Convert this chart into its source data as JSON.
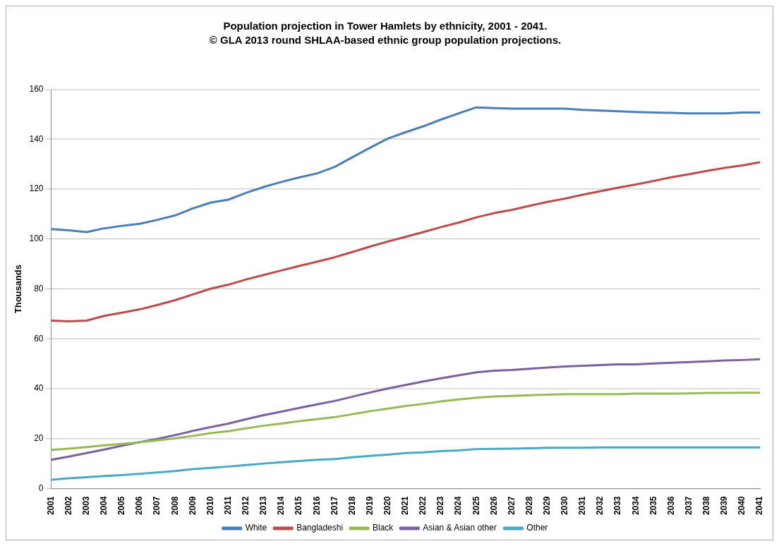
{
  "chart_data": {
    "type": "line",
    "title": "Population projection in Tower Hamlets by ethnicity, 2001 - 2041.",
    "subtitle": "© GLA 2013 round SHLAA-based ethnic group population projections.",
    "ylabel": "Thousands",
    "categories": [
      "2001",
      "2002",
      "2003",
      "2004",
      "2005",
      "2006",
      "2007",
      "2008",
      "2009",
      "2010",
      "2011",
      "2012",
      "2013",
      "2014",
      "2015",
      "2016",
      "2017",
      "2018",
      "2019",
      "2020",
      "2021",
      "2022",
      "2023",
      "2024",
      "2025",
      "2026",
      "2027",
      "2028",
      "2029",
      "2030",
      "2031",
      "2032",
      "2033",
      "2034",
      "2035",
      "2036",
      "2037",
      "2038",
      "2039",
      "2040",
      "2041"
    ],
    "series": [
      {
        "name": "White",
        "color": "#4a7ebb",
        "values": [
          104,
          103.5,
          102.8,
          104.3,
          105.3,
          106.1,
          107.7,
          109.5,
          112.3,
          114.6,
          115.8,
          118.5,
          120.9,
          122.9,
          124.7,
          126.3,
          128.9,
          132.8,
          136.6,
          140.3,
          142.8,
          145.2,
          147.9,
          150.4,
          152.8,
          152.5,
          152.3,
          152.3,
          152.3,
          152.3,
          151.8,
          151.5,
          151.2,
          150.9,
          150.7,
          150.6,
          150.4,
          150.4,
          150.4,
          150.7,
          150.7
        ]
      },
      {
        "name": "Bangladeshi",
        "color": "#be4b48",
        "values": [
          67.3,
          67,
          67.3,
          69.2,
          70.5,
          71.8,
          73.6,
          75.5,
          77.8,
          80.1,
          81.7,
          83.8,
          85.6,
          87.4,
          89.2,
          90.9,
          92.7,
          94.8,
          97,
          99,
          100.9,
          102.8,
          104.8,
          106.6,
          108.7,
          110.4,
          111.7,
          113.3,
          114.9,
          116.2,
          117.8,
          119.2,
          120.6,
          121.9,
          123.3,
          124.8,
          126,
          127.3,
          128.5,
          129.5,
          130.8
        ]
      },
      {
        "name": "Black",
        "color": "#98b954",
        "values": [
          15.5,
          16,
          16.6,
          17.3,
          17.9,
          18.5,
          19.3,
          20.1,
          21.1,
          22.2,
          23,
          24.1,
          25.2,
          26,
          27,
          27.8,
          28.6,
          29.8,
          31,
          32,
          33.1,
          33.9,
          34.9,
          35.7,
          36.4,
          36.9,
          37.1,
          37.4,
          37.6,
          37.8,
          37.8,
          37.8,
          37.8,
          38,
          38,
          38,
          38.1,
          38.3,
          38.3,
          38.4,
          38.4
        ]
      },
      {
        "name": "Asian & Asian other",
        "color": "#7d60a0",
        "values": [
          11.5,
          12.8,
          14.2,
          15.6,
          17.2,
          18.6,
          19.9,
          21.4,
          23.1,
          24.6,
          26,
          27.8,
          29.4,
          30.8,
          32.3,
          33.7,
          35.1,
          36.8,
          38.5,
          40.1,
          41.5,
          42.9,
          44.2,
          45.4,
          46.6,
          47.2,
          47.5,
          48,
          48.5,
          48.9,
          49.2,
          49.5,
          49.8,
          49.8,
          50.1,
          50.4,
          50.7,
          51,
          51.3,
          51.5,
          51.8
        ]
      },
      {
        "name": "Other",
        "color": "#46aac5",
        "values": [
          3.5,
          4.1,
          4.5,
          5,
          5.4,
          5.9,
          6.4,
          7,
          7.8,
          8.3,
          8.8,
          9.4,
          10,
          10.5,
          11,
          11.5,
          11.8,
          12.5,
          13.1,
          13.6,
          14.2,
          14.5,
          15,
          15.3,
          15.8,
          15.9,
          16,
          16.1,
          16.3,
          16.3,
          16.3,
          16.5,
          16.5,
          16.5,
          16.5,
          16.5,
          16.5,
          16.5,
          16.5,
          16.5,
          16.5
        ]
      }
    ],
    "ylim": [
      0,
      160
    ],
    "yticks": [
      0,
      20,
      40,
      60,
      80,
      100,
      120,
      140,
      160
    ],
    "grid": "y",
    "legend": "bottom"
  }
}
